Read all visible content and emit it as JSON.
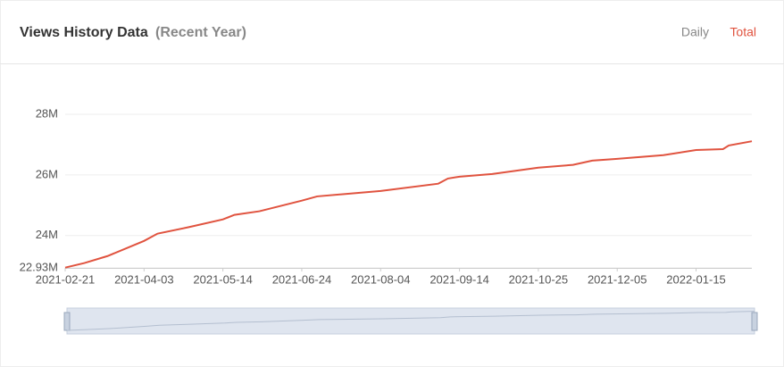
{
  "header": {
    "title": "Views History Data",
    "subtitle": "(Recent Year)",
    "tabs": [
      "Daily",
      "Total"
    ],
    "active_tab": 1
  },
  "chart_data": {
    "type": "line",
    "x": [
      "2021-02-21",
      "2021-03-03",
      "2021-03-15",
      "2021-04-03",
      "2021-04-10",
      "2021-04-26",
      "2021-05-14",
      "2021-05-20",
      "2021-06-02",
      "2021-06-24",
      "2021-07-02",
      "2021-08-04",
      "2021-09-03",
      "2021-09-08",
      "2021-09-14",
      "2021-10-01",
      "2021-10-25",
      "2021-11-12",
      "2021-11-22",
      "2021-12-05",
      "2021-12-29",
      "2022-01-15",
      "2022-01-29",
      "2022-02-01",
      "2022-02-13"
    ],
    "series": [
      {
        "name": "Total",
        "color": "#e0533f",
        "values": [
          22940000,
          23090000,
          23320000,
          23820000,
          24060000,
          24270000,
          24530000,
          24680000,
          24800000,
          25150000,
          25290000,
          25470000,
          25710000,
          25880000,
          25940000,
          26030000,
          26240000,
          26330000,
          26470000,
          26530000,
          26650000,
          26820000,
          26850000,
          26970000,
          27110000
        ]
      }
    ],
    "xlim": [
      "2021-02-21",
      "2022-02-13"
    ],
    "xticks": [
      "2021-02-21",
      "2021-04-03",
      "2021-05-14",
      "2021-06-24",
      "2021-08-04",
      "2021-09-14",
      "2021-10-25",
      "2021-12-05",
      "2022-01-15"
    ],
    "ylim": [
      22930000,
      28000000
    ],
    "yticks": [
      {
        "value": 22930000,
        "label": "22.93M"
      },
      {
        "value": 24000000,
        "label": "24M"
      },
      {
        "value": 26000000,
        "label": "26M"
      },
      {
        "value": 28000000,
        "label": "28M"
      }
    ],
    "grid": true
  }
}
